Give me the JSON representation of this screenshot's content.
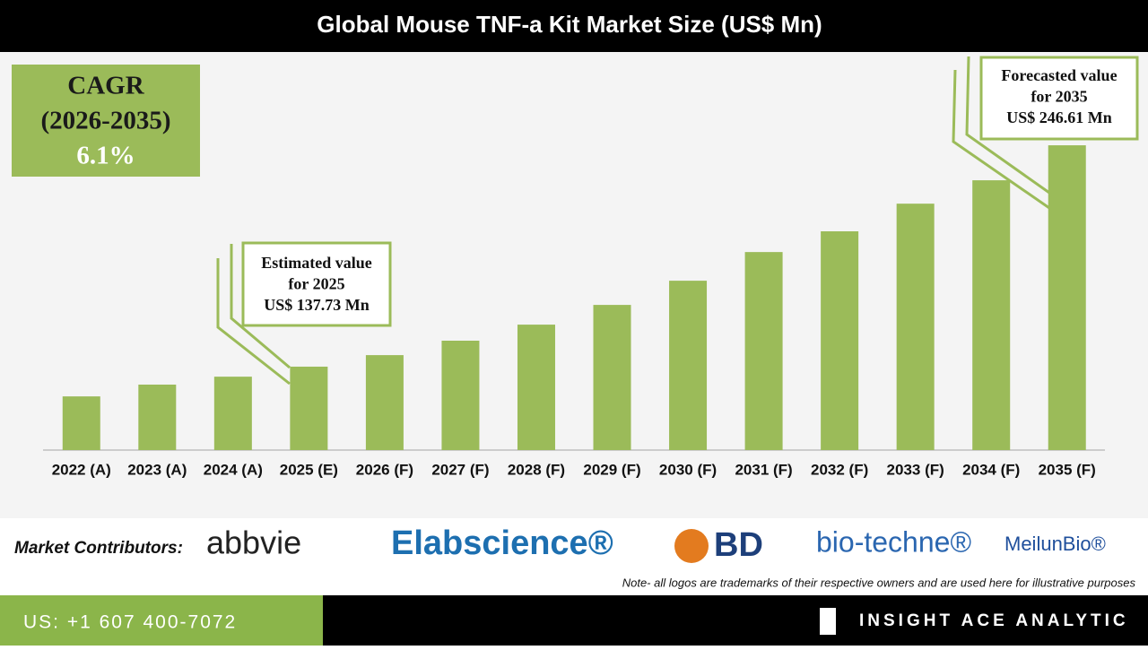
{
  "chart_data": {
    "type": "bar",
    "title": "Global Mouse TNF-a Kit Market Size (US$ Mn)",
    "categories": [
      "2022 (A)",
      "2023 (A)",
      "2024 (A)",
      "2025 (E)",
      "2026 (F)",
      "2027 (F)",
      "2028 (F)",
      "2029 (F)",
      "2030 (F)",
      "2031 (F)",
      "2032 (F)",
      "2033 (F)",
      "2034 (F)",
      "2035 (F)"
    ],
    "values": [
      123.1,
      128.9,
      132.8,
      137.73,
      143.4,
      150.5,
      158.4,
      168.1,
      180.0,
      194.1,
      204.3,
      217.9,
      229.4,
      246.61
    ],
    "color": "#9bbb59",
    "ylim": [
      96.7,
      292.5
    ],
    "cagr": [
      "CAGR",
      "(2026-2035)",
      "6.1%"
    ],
    "annotations": [
      {
        "lines": [
          "Estimated value",
          "for 2025",
          "US$ 137.73 Mn"
        ]
      },
      {
        "lines": [
          "Forecasted value",
          "for 2035",
          "US$ 246.61 Mn"
        ]
      }
    ]
  },
  "contributors": {
    "label": "Market Contributors:",
    "logos": [
      "abbvie",
      "Elabscience®",
      "BD",
      "bio-techne®",
      "MeilunBio®"
    ],
    "note": "Note- all logos are trademarks of their respective owners and are used here for illustrative purposes"
  },
  "footer": {
    "phone": "US: +1 607 400-7072",
    "brand": "INSIGHT ACE ANALYTIC"
  }
}
